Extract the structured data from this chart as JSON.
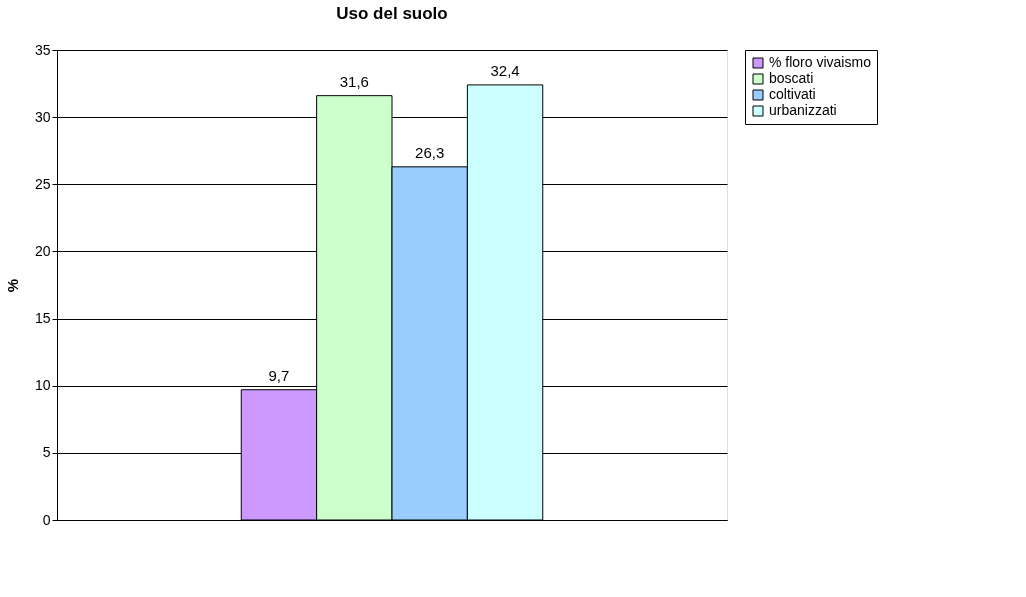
{
  "chart_data": {
    "type": "bar",
    "title": "Uso del suolo",
    "ylabel": "%",
    "categories": [
      null
    ],
    "series": [
      {
        "name": "% floro vivaismo",
        "color": "#cc99ff",
        "values": [
          9.7
        ],
        "value_labels": [
          "9,7"
        ]
      },
      {
        "name": "boscati",
        "color": "#ccffcc",
        "values": [
          31.6
        ],
        "value_labels": [
          "31,6"
        ]
      },
      {
        "name": "coltivati",
        "color": "#99ccff",
        "values": [
          26.3
        ],
        "value_labels": [
          "26,3"
        ]
      },
      {
        "name": "urbanizzati",
        "color": "#ccffff",
        "values": [
          32.4
        ],
        "value_labels": [
          "32,4"
        ]
      }
    ],
    "ylim": [
      0,
      35
    ],
    "yticks": [
      0,
      5,
      10,
      15,
      20,
      25,
      30,
      35
    ],
    "grid": "y",
    "legend": "right"
  }
}
